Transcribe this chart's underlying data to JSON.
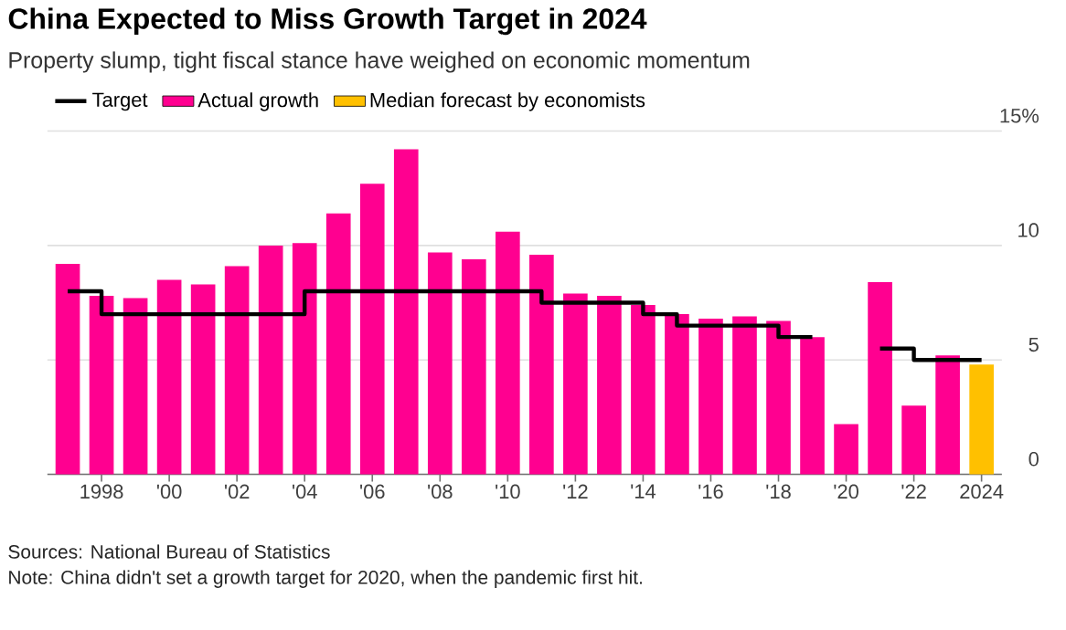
{
  "chart_data": {
    "type": "bar",
    "title": "China Expected to Miss Growth Target in 2024",
    "subtitle": "Property slump, tight fiscal stance have weighed on economic momentum",
    "categories": [
      null,
      "1998",
      null,
      "'00",
      null,
      "'02",
      null,
      "'04",
      null,
      "'06",
      null,
      "'08",
      null,
      "'10",
      null,
      "'12",
      null,
      "'14",
      null,
      "'16",
      null,
      "'18",
      null,
      "'20",
      null,
      "'22",
      null,
      "2024"
    ],
    "series": [
      {
        "name": "Target",
        "type": "step",
        "color": "#000000",
        "values": [
          8,
          7,
          7,
          7,
          7,
          7,
          7,
          8,
          8,
          8,
          8,
          8,
          8,
          8,
          7.5,
          7.5,
          7.5,
          7,
          6.5,
          6.5,
          6.5,
          6,
          6,
          null,
          5.5,
          5,
          5,
          5
        ]
      },
      {
        "name": "Actual growth",
        "color": "#ff0090",
        "values": [
          9.2,
          7.8,
          7.7,
          8.5,
          8.3,
          9.1,
          10.0,
          10.1,
          11.4,
          12.7,
          14.2,
          9.7,
          9.4,
          10.6,
          9.6,
          7.9,
          7.8,
          7.4,
          7.0,
          6.8,
          6.9,
          6.7,
          6.0,
          2.2,
          8.4,
          3.0,
          5.2,
          null
        ]
      },
      {
        "name": "Median forecast by economists",
        "color": "#ffc000",
        "values": [
          null,
          null,
          null,
          null,
          null,
          null,
          null,
          null,
          null,
          null,
          null,
          null,
          null,
          null,
          null,
          null,
          null,
          null,
          null,
          null,
          null,
          null,
          null,
          null,
          null,
          null,
          null,
          4.8
        ]
      }
    ],
    "ylim": [
      0,
      15
    ],
    "yticks": [
      0,
      5,
      10,
      {
        "value": 15,
        "label": "15%"
      }
    ],
    "grid": "y",
    "legend": "top left",
    "annotations": [
      "Sources: National Bureau of Statistics",
      "Note: China didn't set a growth target for 2020, when the pandemic first hit."
    ]
  }
}
